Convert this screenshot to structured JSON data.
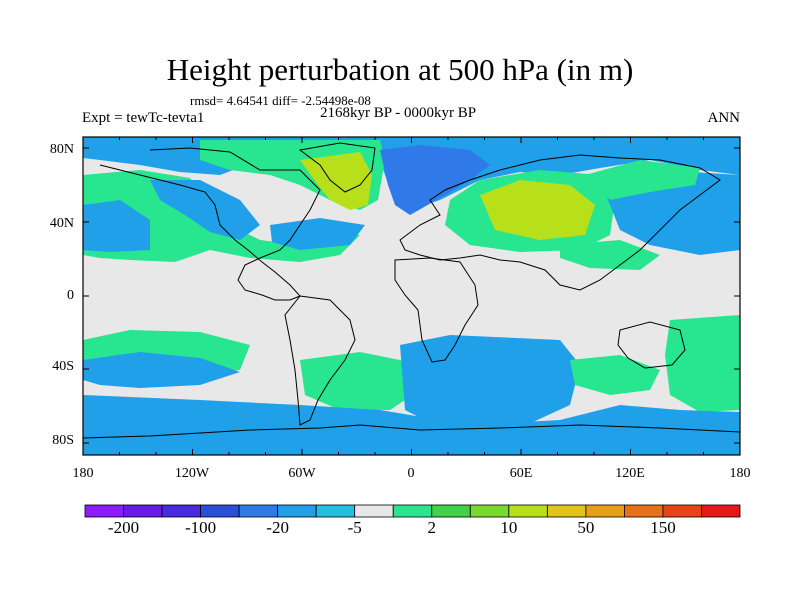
{
  "title": "Height perturbation at 500 hPa (in m)",
  "stats": "rmsd= 4.64541 diff= -2.54498e-08",
  "period": "2168kyr BP - 0000kyr BP",
  "experiment": "Expt = tewTc-tevta1",
  "season": "ANN",
  "lat_labels": [
    "80N",
    "40N",
    "0",
    "40S",
    "80S"
  ],
  "lon_labels": [
    "180",
    "120W",
    "60W",
    "0",
    "60E",
    "120E",
    "180"
  ],
  "colorbar": {
    "labels": [
      "-200",
      "-100",
      "-20",
      "-5",
      "2",
      "10",
      "50",
      "150"
    ],
    "colors": [
      "#8c1cff",
      "#6a1ae8",
      "#4a2ae0",
      "#2a4fd8",
      "#2f7ae8",
      "#1fa0e8",
      "#22c0e0",
      "#e8e8e8",
      "#27e68f",
      "#3fd24a",
      "#7ada2a",
      "#b8e01a",
      "#e0c418",
      "#e89e18",
      "#e87018",
      "#e84418",
      "#e81818"
    ]
  },
  "field_colors": {
    "neutral": "#e8e8e8",
    "light_blue": "#22c0e0",
    "mid_blue": "#1fa0e8",
    "dark_blue": "#2f7ae8",
    "mint": "#27e68f",
    "green": "#3fd24a",
    "lime": "#b8e01a"
  }
}
